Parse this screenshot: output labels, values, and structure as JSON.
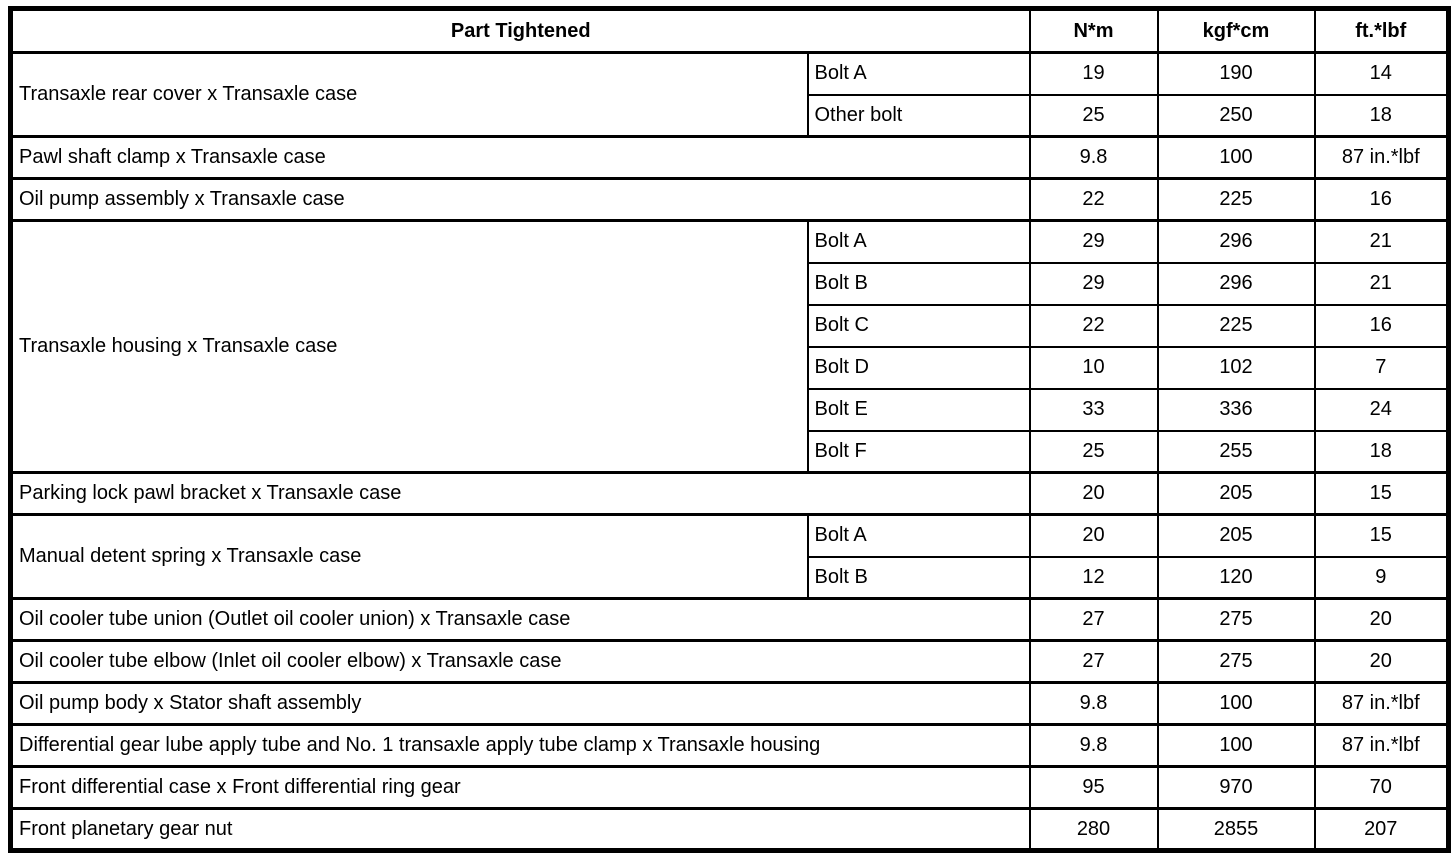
{
  "table": {
    "headers": {
      "part": "Part Tightened",
      "nm": "N*m",
      "kgfcm": "kgf*cm",
      "ftlbf": "ft.*lbf"
    },
    "colors": {
      "border": "#000000",
      "background": "#ffffff",
      "text": "#000000"
    },
    "rows": [
      {
        "part": "Transaxle rear cover x Transaxle case",
        "subs": [
          {
            "label": "Bolt A",
            "nm": "19",
            "kgfcm": "190",
            "ftlbf": "14"
          },
          {
            "label": "Other bolt",
            "nm": "25",
            "kgfcm": "250",
            "ftlbf": "18"
          }
        ]
      },
      {
        "part": "Pawl shaft clamp x Transaxle case",
        "nm": "9.8",
        "kgfcm": "100",
        "ftlbf": "87 in.*lbf"
      },
      {
        "part": "Oil pump assembly x Transaxle case",
        "nm": "22",
        "kgfcm": "225",
        "ftlbf": "16"
      },
      {
        "part": "Transaxle housing x Transaxle case",
        "subs": [
          {
            "label": "Bolt A",
            "nm": "29",
            "kgfcm": "296",
            "ftlbf": "21"
          },
          {
            "label": "Bolt B",
            "nm": "29",
            "kgfcm": "296",
            "ftlbf": "21"
          },
          {
            "label": "Bolt C",
            "nm": "22",
            "kgfcm": "225",
            "ftlbf": "16"
          },
          {
            "label": "Bolt D",
            "nm": "10",
            "kgfcm": "102",
            "ftlbf": "7"
          },
          {
            "label": "Bolt E",
            "nm": "33",
            "kgfcm": "336",
            "ftlbf": "24"
          },
          {
            "label": "Bolt F",
            "nm": "25",
            "kgfcm": "255",
            "ftlbf": "18"
          }
        ]
      },
      {
        "part": "Parking lock pawl bracket x Transaxle case",
        "nm": "20",
        "kgfcm": "205",
        "ftlbf": "15"
      },
      {
        "part": "Manual detent spring x Transaxle case",
        "subs": [
          {
            "label": "Bolt A",
            "nm": "20",
            "kgfcm": "205",
            "ftlbf": "15"
          },
          {
            "label": "Bolt B",
            "nm": "12",
            "kgfcm": "120",
            "ftlbf": "9"
          }
        ]
      },
      {
        "part": "Oil cooler tube union (Outlet oil cooler union) x Transaxle case",
        "nm": "27",
        "kgfcm": "275",
        "ftlbf": "20"
      },
      {
        "part": "Oil cooler tube elbow (Inlet oil cooler elbow) x Transaxle case",
        "nm": "27",
        "kgfcm": "275",
        "ftlbf": "20"
      },
      {
        "part": "Oil pump body x Stator shaft assembly",
        "nm": "9.8",
        "kgfcm": "100",
        "ftlbf": "87 in.*lbf"
      },
      {
        "part": "Differential gear lube apply tube and No. 1 transaxle apply tube clamp x Transaxle housing",
        "nm": "9.8",
        "kgfcm": "100",
        "ftlbf": "87 in.*lbf"
      },
      {
        "part": "Front differential case x Front differential ring gear",
        "nm": "95",
        "kgfcm": "970",
        "ftlbf": "70"
      },
      {
        "part": "Front planetary gear nut",
        "nm": "280",
        "kgfcm": "2855",
        "ftlbf": "207"
      }
    ]
  }
}
